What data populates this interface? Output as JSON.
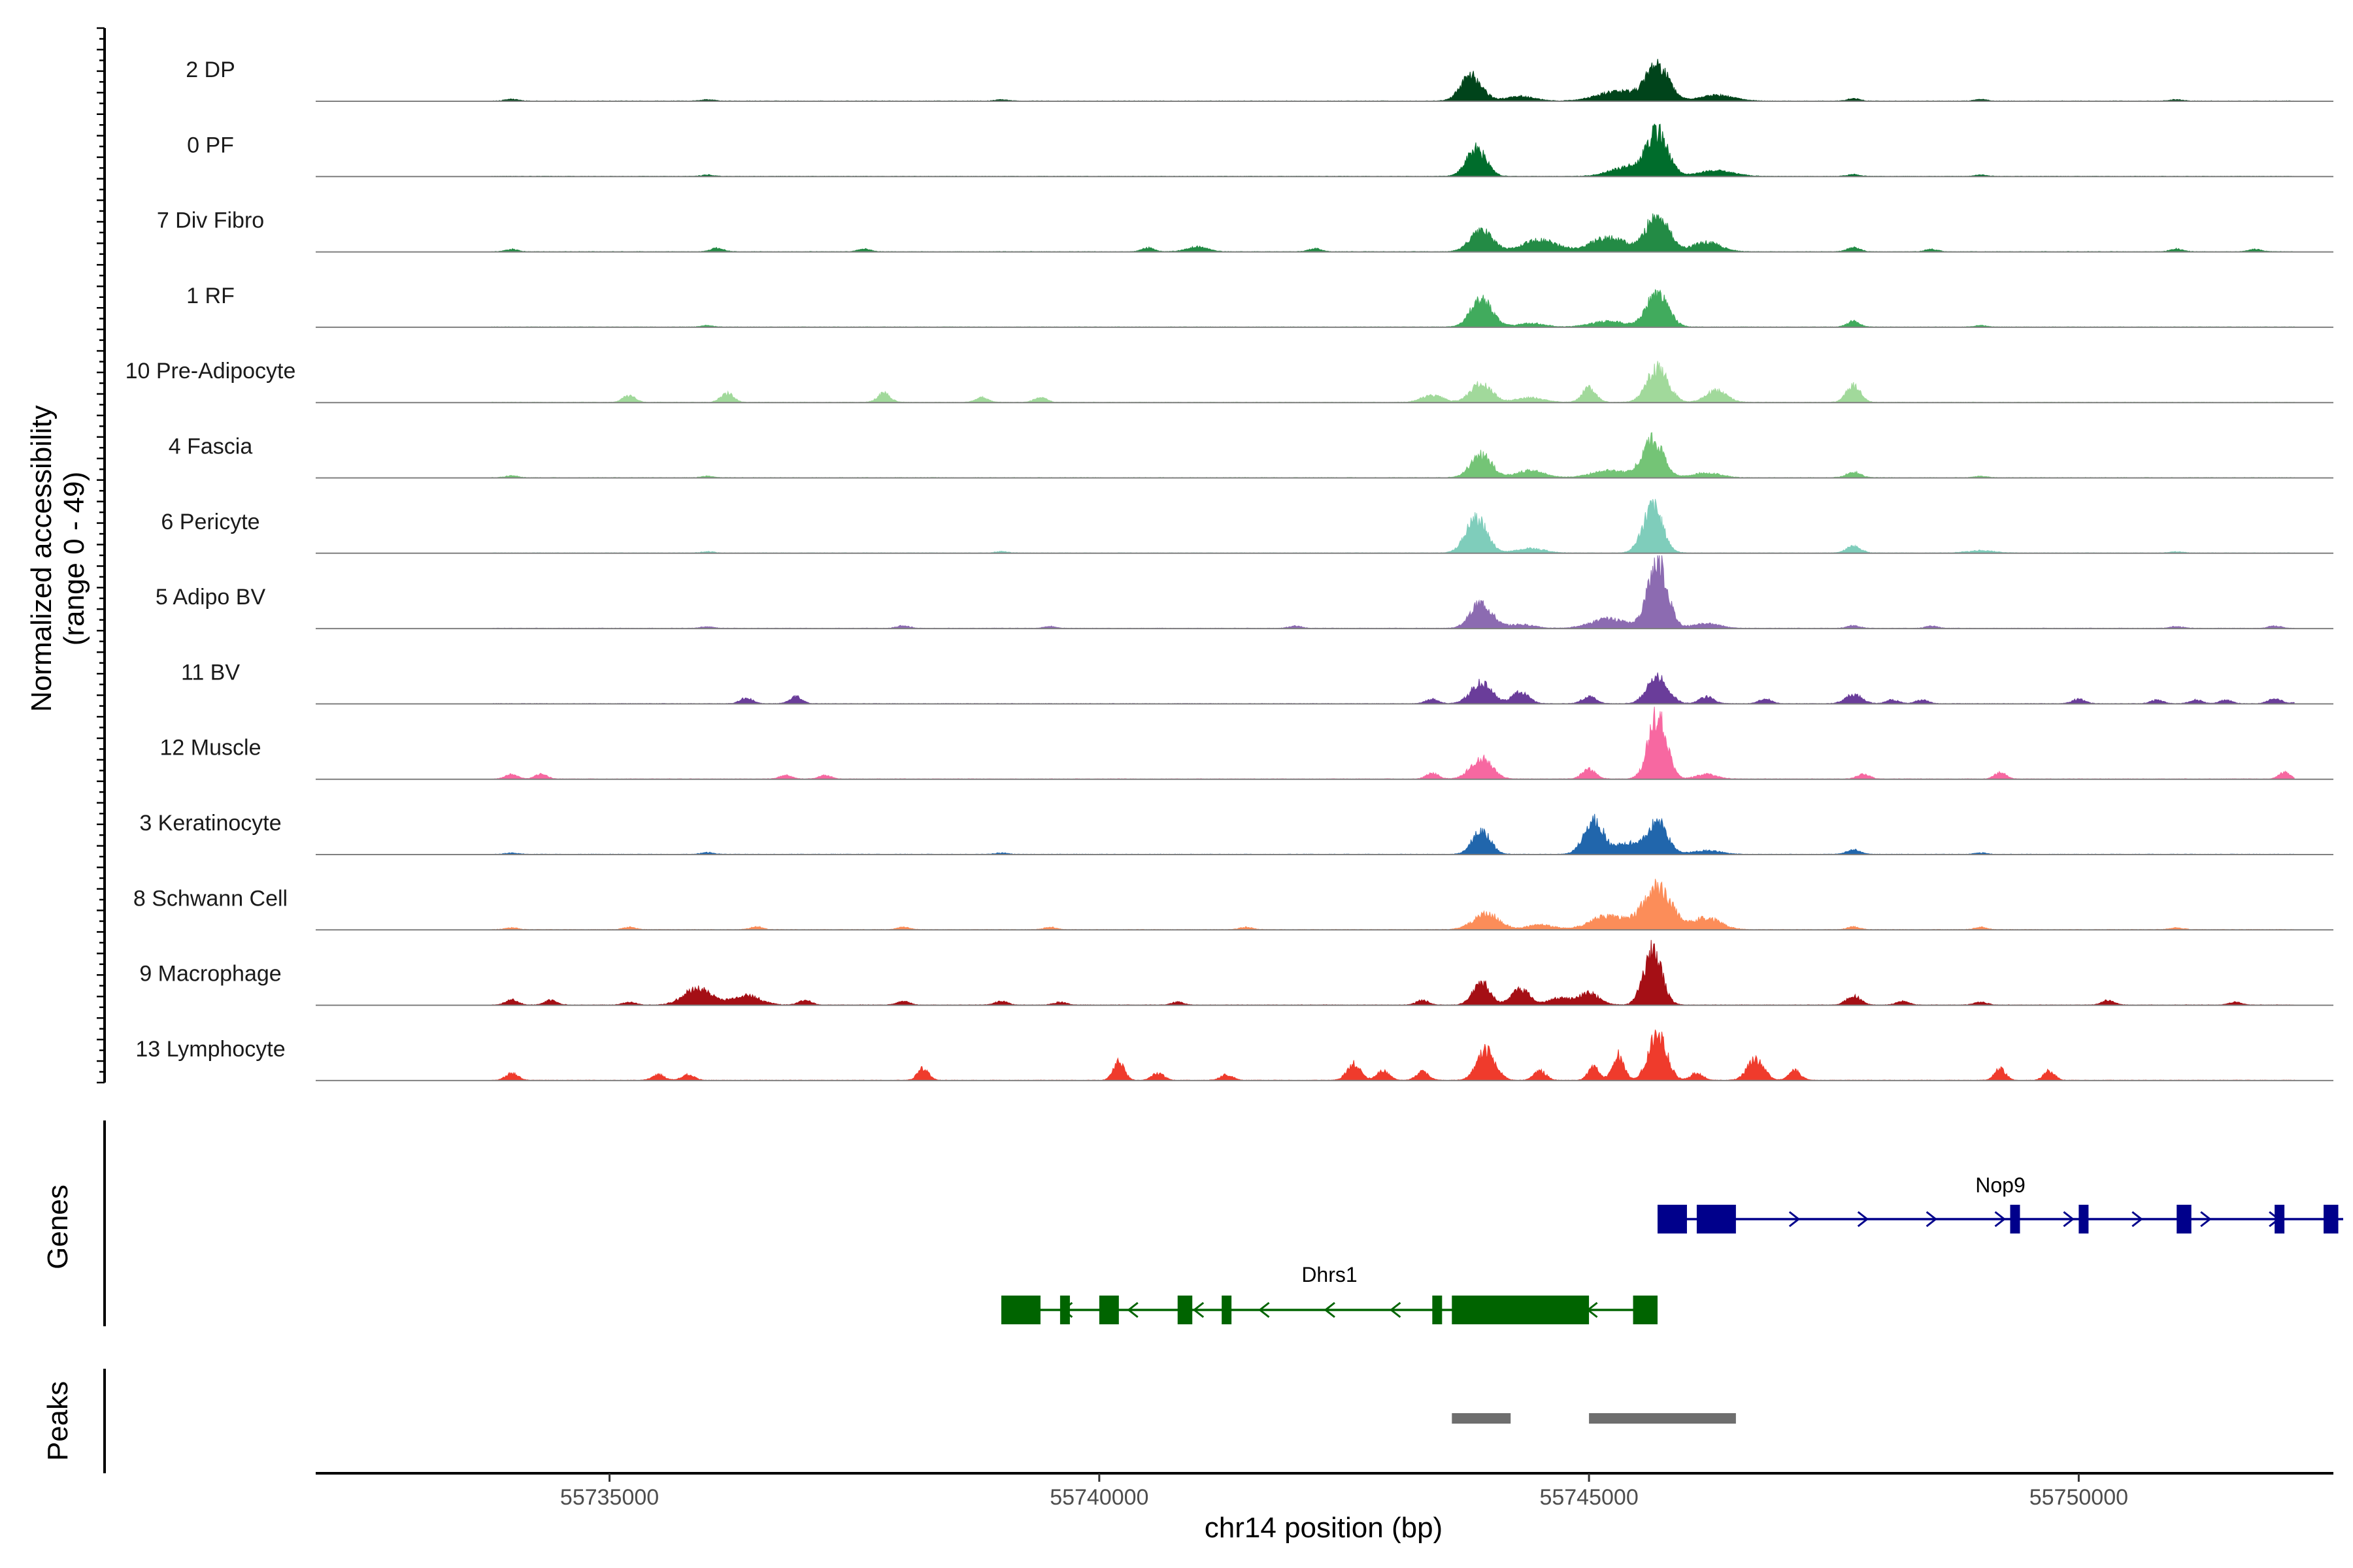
{
  "chart_data": {
    "type": "area",
    "title": "",
    "chromosome": "chr14",
    "xlabel": "chr14 position (bp)",
    "ylabel": "Normalized accessibility",
    "ylabel_range": "(range 0 - 49)",
    "xlim": [
      55732000,
      55752600
    ],
    "x_ticks": [
      55735000,
      55740000,
      55745000,
      55750000
    ],
    "x_tick_labels": [
      "55735000",
      "55740000",
      "55745000",
      "55750000"
    ],
    "grid": false,
    "tracks": [
      {
        "name": "2 DP",
        "color": "#00441b",
        "peaks": [
          [
            55743800,
            0.55,
            150
          ],
          [
            55745700,
            0.75,
            160
          ],
          [
            55745300,
            0.2,
            300
          ],
          [
            55746300,
            0.12,
            250
          ],
          [
            55744300,
            0.1,
            200
          ]
        ],
        "noise": [
          [
            55734000,
            0.04
          ],
          [
            55736000,
            0.03
          ],
          [
            55739000,
            0.03
          ],
          [
            55747700,
            0.05
          ],
          [
            55749000,
            0.03
          ],
          [
            55751000,
            0.03
          ]
        ]
      },
      {
        "name": "0 PF",
        "color": "#006d2c",
        "peaks": [
          [
            55743850,
            0.6,
            140
          ],
          [
            55745700,
            0.9,
            150
          ],
          [
            55745400,
            0.2,
            250
          ],
          [
            55746300,
            0.12,
            250
          ]
        ],
        "noise": [
          [
            55736000,
            0.03
          ],
          [
            55747700,
            0.04
          ],
          [
            55749000,
            0.03
          ]
        ]
      },
      {
        "name": "7 Div Fibro",
        "color": "#238b45",
        "peaks": [
          [
            55743900,
            0.45,
            160
          ],
          [
            55745700,
            0.8,
            160
          ],
          [
            55744500,
            0.25,
            250
          ],
          [
            55745200,
            0.3,
            250
          ],
          [
            55746200,
            0.2,
            200
          ],
          [
            55741000,
            0.1,
            150
          ]
        ],
        "noise": [
          [
            55734000,
            0.05
          ],
          [
            55736100,
            0.08
          ],
          [
            55737600,
            0.06
          ],
          [
            55740500,
            0.08
          ],
          [
            55742200,
            0.07
          ],
          [
            55747700,
            0.09
          ],
          [
            55748500,
            0.05
          ],
          [
            55751000,
            0.06
          ],
          [
            55751800,
            0.05
          ]
        ]
      },
      {
        "name": "1 RF",
        "color": "#41ab5d",
        "peaks": [
          [
            55743900,
            0.6,
            150
          ],
          [
            55745700,
            0.75,
            150
          ],
          [
            55745200,
            0.12,
            250
          ],
          [
            55744400,
            0.08,
            200
          ]
        ],
        "noise": [
          [
            55736000,
            0.03
          ],
          [
            55747700,
            0.12
          ],
          [
            55749000,
            0.03
          ]
        ]
      },
      {
        "name": "10 Pre-Adipocyte",
        "color": "#a1d99b",
        "peaks": [
          [
            55743900,
            0.4,
            150
          ],
          [
            55745700,
            0.75,
            150
          ],
          [
            55745000,
            0.3,
            100
          ],
          [
            55746300,
            0.25,
            150
          ],
          [
            55747700,
            0.35,
            100
          ],
          [
            55743400,
            0.15,
            150
          ],
          [
            55744400,
            0.1,
            200
          ]
        ],
        "noise": [
          [
            55735200,
            0.15
          ],
          [
            55736200,
            0.2
          ],
          [
            55737800,
            0.2
          ],
          [
            55738800,
            0.1
          ],
          [
            55739400,
            0.1
          ]
        ]
      },
      {
        "name": "4 Fascia",
        "color": "#74c476",
        "peaks": [
          [
            55743900,
            0.5,
            150
          ],
          [
            55745650,
            0.8,
            150
          ],
          [
            55744400,
            0.15,
            200
          ],
          [
            55745200,
            0.15,
            250
          ],
          [
            55746200,
            0.1,
            200
          ],
          [
            55747700,
            0.12,
            100
          ]
        ],
        "noise": [
          [
            55734000,
            0.04
          ],
          [
            55736000,
            0.03
          ],
          [
            55749000,
            0.03
          ]
        ]
      },
      {
        "name": "6 Pericyte",
        "color": "#7fcdbb",
        "peaks": [
          [
            55743850,
            0.75,
            150
          ],
          [
            55745650,
            1.0,
            140
          ],
          [
            55744400,
            0.1,
            200
          ],
          [
            55747700,
            0.15,
            100
          ],
          [
            55749000,
            0.05,
            200
          ]
        ],
        "noise": [
          [
            55736000,
            0.03
          ],
          [
            55739000,
            0.03
          ],
          [
            55751000,
            0.03
          ]
        ]
      },
      {
        "name": "5 Adipo BV",
        "color": "#8c6bb1",
        "peaks": [
          [
            55743900,
            0.55,
            150
          ],
          [
            55745700,
            1.45,
            140
          ],
          [
            55745200,
            0.2,
            250
          ],
          [
            55746200,
            0.1,
            200
          ],
          [
            55744300,
            0.08,
            200
          ]
        ],
        "noise": [
          [
            55736000,
            0.04
          ],
          [
            55738000,
            0.06
          ],
          [
            55739500,
            0.04
          ],
          [
            55742000,
            0.05
          ],
          [
            55747700,
            0.06
          ],
          [
            55748500,
            0.05
          ],
          [
            55751000,
            0.04
          ],
          [
            55752000,
            0.05
          ]
        ]
      },
      {
        "name": "11 BV",
        "color": "#6a3d9a",
        "peaks": [
          [
            55743900,
            0.45,
            150
          ],
          [
            55745700,
            0.55,
            150
          ],
          [
            55744300,
            0.25,
            120
          ],
          [
            55745000,
            0.15,
            100
          ],
          [
            55747700,
            0.2,
            120
          ],
          [
            55746200,
            0.15,
            100
          ]
        ],
        "noise": [
          [
            55736400,
            0.12
          ],
          [
            55736900,
            0.15
          ],
          [
            55743400,
            0.1
          ],
          [
            55746800,
            0.1
          ],
          [
            55748100,
            0.08
          ],
          [
            55748400,
            0.08
          ],
          [
            55750000,
            0.1
          ],
          [
            55750800,
            0.08
          ],
          [
            55751200,
            0.08
          ],
          [
            55751500,
            0.08
          ],
          [
            55752000,
            0.12
          ],
          [
            55752300,
            0.1
          ]
        ]
      },
      {
        "name": "12 Muscle",
        "color": "#f768a1",
        "peaks": [
          [
            55743900,
            0.45,
            150
          ],
          [
            55745700,
            1.35,
            130
          ],
          [
            55745000,
            0.2,
            100
          ],
          [
            55746200,
            0.1,
            150
          ],
          [
            55749200,
            0.15,
            80
          ],
          [
            55752100,
            0.15,
            80
          ]
        ],
        "noise": [
          [
            55734000,
            0.1
          ],
          [
            55734300,
            0.1
          ],
          [
            55736800,
            0.08
          ],
          [
            55737200,
            0.08
          ],
          [
            55747800,
            0.1
          ],
          [
            55743400,
            0.12
          ]
        ]
      },
      {
        "name": "3 Keratinocyte",
        "color": "#2166ac",
        "peaks": [
          [
            55743900,
            0.5,
            130
          ],
          [
            55745050,
            0.75,
            140
          ],
          [
            55745700,
            0.7,
            140
          ],
          [
            55745400,
            0.25,
            150
          ],
          [
            55746200,
            0.08,
            200
          ],
          [
            55747700,
            0.1,
            100
          ]
        ],
        "noise": [
          [
            55734000,
            0.03
          ],
          [
            55736000,
            0.04
          ],
          [
            55739000,
            0.03
          ],
          [
            55749000,
            0.03
          ]
        ]
      },
      {
        "name": "8 Schwann Cell",
        "color": "#fc8d59",
        "peaks": [
          [
            55743950,
            0.35,
            180
          ],
          [
            55745700,
            0.9,
            200
          ],
          [
            55745200,
            0.3,
            250
          ],
          [
            55746200,
            0.25,
            200
          ],
          [
            55744500,
            0.1,
            200
          ]
        ],
        "noise": [
          [
            55734000,
            0.04
          ],
          [
            55735200,
            0.05
          ],
          [
            55736500,
            0.06
          ],
          [
            55738000,
            0.05
          ],
          [
            55739500,
            0.05
          ],
          [
            55741500,
            0.05
          ],
          [
            55747700,
            0.06
          ],
          [
            55749000,
            0.05
          ],
          [
            55751000,
            0.04
          ]
        ]
      },
      {
        "name": "9 Macrophage",
        "color": "#a50f15",
        "peaks": [
          [
            55743900,
            0.5,
            120
          ],
          [
            55744300,
            0.35,
            130
          ],
          [
            55745650,
            1.15,
            130
          ],
          [
            55745000,
            0.25,
            150
          ],
          [
            55735900,
            0.35,
            200
          ],
          [
            55736400,
            0.2,
            200
          ],
          [
            55747700,
            0.2,
            100
          ],
          [
            55744700,
            0.15,
            150
          ]
        ],
        "noise": [
          [
            55734000,
            0.12
          ],
          [
            55734400,
            0.1
          ],
          [
            55735200,
            0.06
          ],
          [
            55737000,
            0.1
          ],
          [
            55738000,
            0.08
          ],
          [
            55739000,
            0.08
          ],
          [
            55739600,
            0.06
          ],
          [
            55740800,
            0.06
          ],
          [
            55743300,
            0.1
          ],
          [
            55748200,
            0.08
          ],
          [
            55749000,
            0.06
          ],
          [
            55750300,
            0.1
          ],
          [
            55751600,
            0.06
          ]
        ]
      },
      {
        "name": "13 Lymphocyte",
        "color": "#ef3b2c",
        "peaks": [
          [
            55743950,
            0.65,
            130
          ],
          [
            55745700,
            1.0,
            130
          ],
          [
            55745300,
            0.55,
            80
          ],
          [
            55746700,
            0.45,
            120
          ],
          [
            55742600,
            0.35,
            100
          ],
          [
            55740200,
            0.4,
            80
          ],
          [
            55738200,
            0.25,
            80
          ],
          [
            55745050,
            0.3,
            80
          ],
          [
            55749200,
            0.25,
            80
          ],
          [
            55749700,
            0.2,
            80
          ]
        ],
        "noise": [
          [
            55734000,
            0.15
          ],
          [
            55735500,
            0.12
          ],
          [
            55735800,
            0.12
          ],
          [
            55740600,
            0.15
          ],
          [
            55741300,
            0.12
          ],
          [
            55742900,
            0.2
          ],
          [
            55743300,
            0.18
          ],
          [
            55744500,
            0.2
          ],
          [
            55746100,
            0.15
          ],
          [
            55747100,
            0.2
          ]
        ]
      }
    ],
    "genes": [
      {
        "name": "Nop9",
        "strand": "+",
        "color": "#00008b",
        "start": 55745700,
        "end": 55752700,
        "exons": [
          [
            55745700,
            55746000
          ],
          [
            55746100,
            55746500
          ],
          [
            55749300,
            55749400
          ],
          [
            55750000,
            55750100
          ],
          [
            55751000,
            55751150
          ],
          [
            55752000,
            55752100
          ],
          [
            55752500,
            55752650
          ]
        ]
      },
      {
        "name": "Dhrs1",
        "strand": "-",
        "color": "#006400",
        "start": 55739000,
        "end": 55745700,
        "exons": [
          [
            55739000,
            55739400
          ],
          [
            55739600,
            55739700
          ],
          [
            55740000,
            55740200
          ],
          [
            55740800,
            55740950
          ],
          [
            55741250,
            55741350
          ],
          [
            55743400,
            55743500
          ],
          [
            55743600,
            55745000
          ],
          [
            55745450,
            55745700
          ]
        ]
      }
    ],
    "peak_regions": [
      [
        55743600,
        55744200
      ],
      [
        55745000,
        55746500
      ]
    ],
    "panel_titles": {
      "genes": "Genes",
      "peaks": "Peaks"
    }
  }
}
